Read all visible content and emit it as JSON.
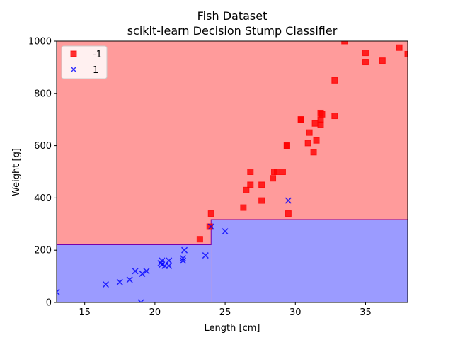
{
  "chart_data": {
    "type": "scatter",
    "title": "Fish Dataset",
    "subtitle": "scikit-learn Decision Stump Classifier",
    "xlabel": "Length [cm]",
    "ylabel": "Weight [g]",
    "xlim": [
      13,
      38
    ],
    "ylim": [
      0,
      1000
    ],
    "xticks": [
      15,
      20,
      25,
      30,
      35
    ],
    "yticks": [
      0,
      200,
      400,
      600,
      800,
      1000
    ],
    "grid": false,
    "legend_position": "top-left",
    "decision_regions": [
      {
        "label": "1",
        "color": "#9b9bff",
        "x_from": 13,
        "x_to": 24,
        "y_boundary": 221
      },
      {
        "label": "1",
        "color": "#9b9bff",
        "x_from": 24,
        "x_to": 38,
        "y_boundary": 317
      }
    ],
    "region_colors": {
      "-1": "#ff9b9b",
      "1": "#9b9bff"
    },
    "series": [
      {
        "name": "-1",
        "marker": "square",
        "color": "#ff0000",
        "points": [
          [
            23.2,
            242
          ],
          [
            24.0,
            340
          ],
          [
            23.9,
            290
          ],
          [
            26.3,
            363
          ],
          [
            26.5,
            430
          ],
          [
            26.8,
            450
          ],
          [
            26.8,
            500
          ],
          [
            27.6,
            390
          ],
          [
            27.6,
            450
          ],
          [
            28.4,
            475
          ],
          [
            28.5,
            500
          ],
          [
            28.7,
            500
          ],
          [
            29.1,
            500
          ],
          [
            29.5,
            340
          ],
          [
            29.4,
            600
          ],
          [
            29.4,
            600
          ],
          [
            30.4,
            700
          ],
          [
            30.4,
            700
          ],
          [
            30.9,
            610
          ],
          [
            31.0,
            650
          ],
          [
            31.3,
            575
          ],
          [
            31.4,
            685
          ],
          [
            31.5,
            620
          ],
          [
            31.8,
            680
          ],
          [
            31.8,
            700
          ],
          [
            31.8,
            725
          ],
          [
            31.9,
            720
          ],
          [
            32.8,
            714
          ],
          [
            32.8,
            850
          ],
          [
            33.5,
            1000
          ],
          [
            35.0,
            920
          ],
          [
            35.0,
            955
          ],
          [
            36.2,
            925
          ],
          [
            37.4,
            975
          ],
          [
            38.0,
            950
          ]
        ]
      },
      {
        "name": "1",
        "marker": "x",
        "color": "#0000ff",
        "points": [
          [
            13.0,
            40
          ],
          [
            16.5,
            69
          ],
          [
            17.5,
            78
          ],
          [
            18.2,
            87
          ],
          [
            18.6,
            120
          ],
          [
            19.0,
            0
          ],
          [
            19.1,
            110
          ],
          [
            19.4,
            120
          ],
          [
            20.4,
            150
          ],
          [
            20.5,
            145
          ],
          [
            20.5,
            160
          ],
          [
            20.7,
            140
          ],
          [
            21.0,
            160
          ],
          [
            21.0,
            140
          ],
          [
            22.0,
            160
          ],
          [
            22.0,
            169
          ],
          [
            22.1,
            200
          ],
          [
            23.6,
            180
          ],
          [
            24.0,
            290
          ],
          [
            25.0,
            272
          ],
          [
            29.5,
            390
          ]
        ]
      }
    ]
  }
}
